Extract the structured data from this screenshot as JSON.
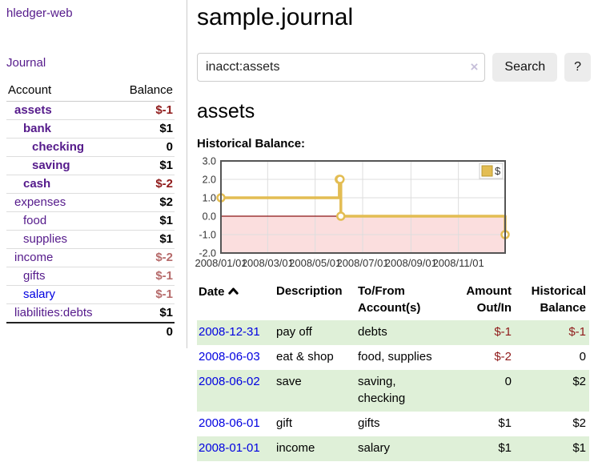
{
  "app": {
    "title": "hledger-web"
  },
  "sidebar": {
    "journal_link": "Journal",
    "accounts_header": {
      "account": "Account",
      "balance": "Balance"
    },
    "accounts": [
      {
        "name": "assets",
        "balance": "$-1",
        "level": 0,
        "bold": true,
        "amount_class": "neg"
      },
      {
        "name": "bank",
        "balance": "$1",
        "level": 1,
        "bold": true,
        "amount_class": ""
      },
      {
        "name": "checking",
        "balance": "0",
        "level": 2,
        "bold": true,
        "amount_class": ""
      },
      {
        "name": "saving",
        "balance": "$1",
        "level": 2,
        "bold": true,
        "amount_class": ""
      },
      {
        "name": "cash",
        "balance": "$-2",
        "level": 1,
        "bold": true,
        "amount_class": "neg"
      },
      {
        "name": "expenses",
        "balance": "$2",
        "level": 0,
        "bold": false,
        "amount_class": ""
      },
      {
        "name": "food",
        "balance": "$1",
        "level": 1,
        "bold": false,
        "amount_class": ""
      },
      {
        "name": "supplies",
        "balance": "$1",
        "level": 1,
        "bold": false,
        "amount_class": ""
      },
      {
        "name": "income",
        "balance": "$-2",
        "level": 0,
        "bold": false,
        "amount_class": "neg-dim"
      },
      {
        "name": "gifts",
        "balance": "$-1",
        "level": 1,
        "bold": false,
        "amount_class": "neg-dim"
      },
      {
        "name": "salary",
        "balance": "$-1",
        "level": 1,
        "bold": false,
        "amount_class": "neg-dim",
        "link_class": "blue"
      },
      {
        "name": "liabilities:debts",
        "balance": "$1",
        "level": 0,
        "bold": false,
        "amount_class": ""
      }
    ],
    "total": "0"
  },
  "main": {
    "title": "sample.journal",
    "search": {
      "value": "inacct:assets",
      "clear_label": "×",
      "button": "Search",
      "help_button": "?"
    },
    "account_heading": "assets",
    "chart_label": "Historical Balance:"
  },
  "chart_data": {
    "type": "line",
    "title": "Historical Balance:",
    "step": "before",
    "series": [
      {
        "name": "$",
        "points": [
          {
            "date": "2008-01-01",
            "value": 1
          },
          {
            "date": "2008-06-01",
            "value": 2
          },
          {
            "date": "2008-06-02",
            "value": 2
          },
          {
            "date": "2008-06-03",
            "value": 0
          },
          {
            "date": "2008-12-31",
            "value": -1
          }
        ]
      }
    ],
    "x_range": [
      "2008-01-01",
      "2008-12-31"
    ],
    "ylim": [
      -2,
      3
    ],
    "y_ticks": [
      "3.0",
      "2.0",
      "1.0",
      "0.0",
      "-1.0",
      "-2.0"
    ],
    "x_ticks": [
      "2008/01/01",
      "2008/03/01",
      "2008/05/01",
      "2008/07/01",
      "2008/09/01",
      "2008/11/01"
    ],
    "legend": "$",
    "legend_position": "top-right",
    "grid": true,
    "line_color": "#e3bd53",
    "negative_fill": "#fbdede",
    "zero_line_color": "#8c1515"
  },
  "register": {
    "columns": [
      "Date",
      "Description",
      "To/From Account(s)",
      "Amount Out/In",
      "Historical Balance"
    ],
    "rows": [
      {
        "date": "2008-12-31",
        "description": "pay off",
        "accounts": "debts",
        "amount": "$-1",
        "balance": "$-1",
        "amount_class": "neg",
        "balance_class": "neg"
      },
      {
        "date": "2008-06-03",
        "description": "eat & shop",
        "accounts": "food, supplies",
        "amount": "$-2",
        "balance": "0",
        "amount_class": "neg",
        "balance_class": ""
      },
      {
        "date": "2008-06-02",
        "description": "save",
        "accounts": "saving, checking",
        "amount": "0",
        "balance": "$2",
        "amount_class": "",
        "balance_class": ""
      },
      {
        "date": "2008-06-01",
        "description": "gift",
        "accounts": "gifts",
        "amount": "$1",
        "balance": "$2",
        "amount_class": "",
        "balance_class": ""
      },
      {
        "date": "2008-01-01",
        "description": "income",
        "accounts": "salary",
        "amount": "$1",
        "balance": "$1",
        "amount_class": "",
        "balance_class": ""
      }
    ]
  },
  "colors": {
    "link_purple": "#551a8b",
    "link_blue": "#0000e0",
    "negative": "#8f1a1a",
    "negative_dim": "#b66a6a",
    "row_stripe_green": "#dff0d8",
    "chart_line_gold": "#e3bd53",
    "chart_negative_pink": "#fbdede",
    "chart_zero_red": "#8c1515"
  }
}
